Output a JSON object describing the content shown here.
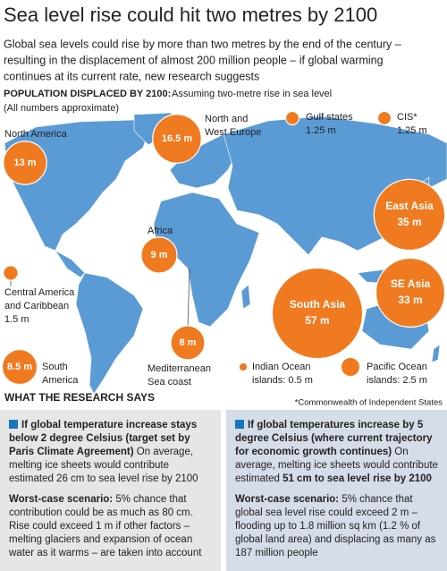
{
  "header": {
    "title": "Sea level rise could hit two metres by 2100",
    "subtitle_lines": [
      "Global sea levels could rise by more than two metres by the end of the century –",
      "resulting in the displacement of almost 200 million people – if global warming",
      "continues at its current rate, new research suggests"
    ],
    "map_heading": "POPULATION DISPLACED BY 2100:",
    "map_subheading": "Assuming two-metre rise in sea level",
    "note": "(All numbers approximate)"
  },
  "regions": [
    {
      "name_lines": [
        "North America"
      ],
      "value": 13,
      "value_label": "13 m"
    },
    {
      "name_lines": [
        "North and",
        "West Europe"
      ],
      "value": 16.5,
      "value_label": "16.5 m"
    },
    {
      "name_lines": [
        "Gulf states"
      ],
      "value": 1.25,
      "value_label": "1.25 m"
    },
    {
      "name_lines": [
        "CIS*"
      ],
      "value": 1.25,
      "value_label": "1.25 m"
    },
    {
      "name_lines": [
        "East Asia"
      ],
      "value": 35,
      "value_label": "35 m"
    },
    {
      "name_lines": [
        "SE Asia"
      ],
      "value": 33,
      "value_label": "33 m"
    },
    {
      "name_lines": [
        "South Asia"
      ],
      "value": 57,
      "value_label": "57 m"
    },
    {
      "name_lines": [
        "Africa"
      ],
      "value": 9,
      "value_label": "9 m"
    },
    {
      "name_lines": [
        "Central America",
        "and Caribbean"
      ],
      "value": 1.5,
      "value_label": "1.5 m"
    },
    {
      "name_lines": [
        "Mediterranean",
        "Sea coast"
      ],
      "value": 8,
      "value_label": "8 m"
    },
    {
      "name_lines": [
        "South",
        "America"
      ],
      "value": 8.5,
      "value_label": "8.5 m"
    },
    {
      "name_lines": [
        "Indian Ocean"
      ],
      "value": 0.5,
      "value_label": "islands: 0.5 m"
    },
    {
      "name_lines": [
        "Pacific Ocean"
      ],
      "value": 2.5,
      "value_label": "islands: 2.5 m"
    }
  ],
  "research": {
    "title": "WHAT THE RESEARCH SAYS",
    "footnote": "*Commonwealth of Independent States",
    "panels": [
      {
        "heading": "If global temperature increase stays below 2 degree Celsius (target set by Paris Climate Agreement)",
        "body": "On average, melting ice sheets would contribute estimated 26 cm to sea level rise by 2100",
        "worst_label": "Worst-case scenario:",
        "worst_body": "5% chance that contribution could be as much as 80 cm. Rise could exceed 1 m if other factors – melting glaciers and expansion of ocean water as it warms – are taken into account"
      },
      {
        "heading": "If global temperatures increase by 5 degree Celsius (where current trajectory for economic growth continues)",
        "body": "On average, melting ice sheets would contribute estimated",
        "body_emphasis": "51 cm to sea level rise by 2100",
        "worst_label": "Worst-case scenario:",
        "worst_body": "5% chance that global sea level rise could exceed 2 m – flooding up to 1.8 million sq km (1.2 % of global land area) and displacing as many as 187 million people"
      }
    ]
  }
}
